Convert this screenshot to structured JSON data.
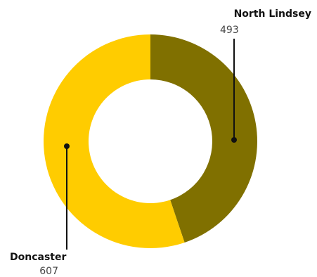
{
  "chart_data": {
    "type": "pie",
    "title": "",
    "style": "donut",
    "slices": [
      {
        "label": "North Lindsey",
        "value": 493,
        "color": "#807000"
      },
      {
        "label": "Doncaster",
        "value": 607,
        "color": "#ffcc00"
      }
    ],
    "legend": "callout-labels"
  }
}
